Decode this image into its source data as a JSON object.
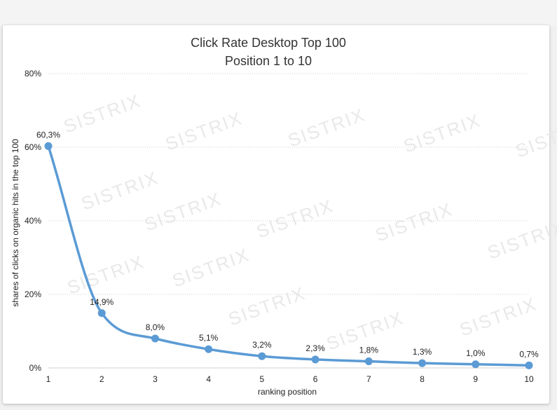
{
  "chart_data": {
    "type": "line",
    "title": "Click Rate Desktop Top 100",
    "subtitle": "Position 1 to 10",
    "xlabel": "ranking position",
    "ylabel": "shares of clicks on organic hits in the top 100",
    "x": [
      1,
      2,
      3,
      4,
      5,
      6,
      7,
      8,
      9,
      10
    ],
    "values": [
      60.3,
      14.9,
      8.0,
      5.1,
      3.2,
      2.3,
      1.8,
      1.3,
      1.0,
      0.7
    ],
    "data_labels": [
      "60,3%",
      "14,9%",
      "8,0%",
      "5,1%",
      "3,2%",
      "2,3%",
      "1,8%",
      "1,3%",
      "1,0%",
      "0,7%"
    ],
    "ylim": [
      0,
      80
    ],
    "yticks": [
      0,
      20,
      40,
      60,
      80
    ],
    "ytick_labels": [
      "0%",
      "20%",
      "40%",
      "60%",
      "80%"
    ],
    "grid": "horizontal-dotted",
    "line_color": "#5b9bd5"
  },
  "watermark": "SISTRIX"
}
